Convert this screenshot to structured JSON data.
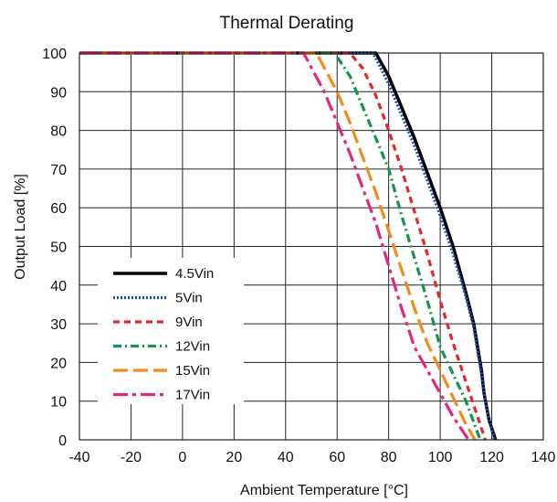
{
  "chart_data": {
    "type": "line",
    "title": "Thermal Derating",
    "xlabel": "Ambient Temperature [°C]",
    "ylabel": "Output Load [%]",
    "xlim": [
      -40,
      140
    ],
    "ylim": [
      0,
      100
    ],
    "xticks": [
      -40,
      -20,
      0,
      20,
      40,
      60,
      80,
      100,
      120,
      140
    ],
    "yticks": [
      0,
      10,
      20,
      30,
      40,
      50,
      60,
      70,
      80,
      90,
      100
    ],
    "grid": true,
    "legend_position": "bottom-left",
    "series": [
      {
        "name": "4.5Vin",
        "color": "#000000",
        "style": "solid",
        "x": [
          -40,
          75,
          80,
          85,
          90,
          95,
          100,
          105,
          110,
          113,
          116,
          117,
          119,
          121.5
        ],
        "y": [
          100,
          100,
          94,
          86,
          78,
          69,
          60,
          50,
          38,
          30,
          18,
          12,
          5,
          0
        ]
      },
      {
        "name": "5Vin",
        "color": "#1f4fb0",
        "style": "dotted",
        "x": [
          -40,
          74,
          80,
          85,
          90,
          95,
          100,
          105,
          110,
          113,
          116,
          118,
          121
        ],
        "y": [
          100,
          100,
          92,
          84,
          76,
          67,
          58,
          48,
          37,
          29,
          17,
          8,
          0
        ]
      },
      {
        "name": "9Vin",
        "color": "#e02a2a",
        "style": "dashed",
        "x": [
          -40,
          65,
          70,
          75,
          80,
          85,
          90,
          95,
          100,
          105,
          110,
          114,
          117.5
        ],
        "y": [
          100,
          100,
          96,
          89,
          80,
          70,
          59,
          48,
          36,
          25,
          15,
          7,
          0
        ]
      },
      {
        "name": "12Vin",
        "color": "#14934a",
        "style": "dashdot",
        "x": [
          -40,
          59,
          65,
          70,
          75,
          80,
          85,
          90,
          95,
          100,
          105,
          110,
          115.5
        ],
        "y": [
          100,
          100,
          94,
          86,
          78,
          70,
          58,
          47,
          36,
          24,
          17,
          10,
          0
        ]
      },
      {
        "name": "15Vin",
        "color": "#f08c1e",
        "style": "longdash",
        "x": [
          -40,
          52,
          60,
          65,
          70,
          75,
          80,
          85,
          90,
          95,
          100,
          105,
          110,
          113.5
        ],
        "y": [
          100,
          100,
          90,
          82,
          73,
          64,
          54,
          44,
          34,
          25,
          18,
          11,
          4,
          0
        ]
      },
      {
        "name": "17Vin",
        "color": "#e0287e",
        "style": "dashdotlong",
        "x": [
          -40,
          47,
          55,
          60,
          65,
          70,
          75,
          80,
          85,
          90,
          95,
          100,
          105,
          111
        ],
        "y": [
          100,
          100,
          90,
          82,
          74,
          65,
          56,
          45,
          34,
          24,
          18,
          12,
          6,
          0
        ]
      }
    ]
  }
}
